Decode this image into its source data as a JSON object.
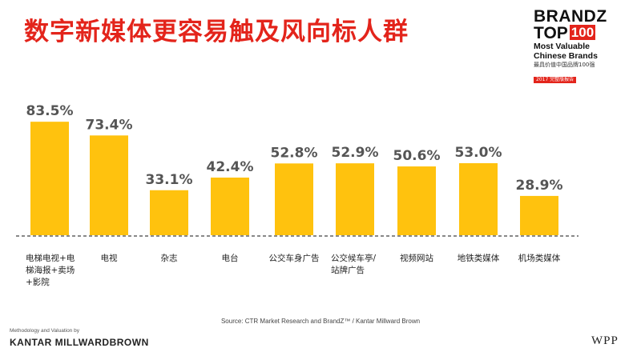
{
  "title": "数字新媒体更容易触及风向标人群",
  "logo": {
    "line1": "BRANDZ",
    "line2_prefix": "TOP",
    "line2_num": "100",
    "line3": "Most Valuable",
    "line4": "Chinese Brands",
    "line5": "最具价值中国品牌100强",
    "line6": "2017 完整版报告"
  },
  "chart_data": {
    "type": "bar",
    "categories": [
      "电梯电视+电梯海报+卖场+影院",
      "电视",
      "杂志",
      "电台",
      "公交车身广告",
      "公交候车亭/站牌广告",
      "视频网站",
      "地铁类媒体",
      "机场类媒体"
    ],
    "category_lines": [
      [
        "电梯电视+电",
        "梯海报+卖场",
        "+影院"
      ],
      [
        "电视"
      ],
      [
        "杂志"
      ],
      [
        "电台"
      ],
      [
        "公交车身广告"
      ],
      [
        "公交候车亭/",
        "站牌广告"
      ],
      [
        "视频网站"
      ],
      [
        "地铁类媒体"
      ],
      [
        "机场类媒体"
      ]
    ],
    "values": [
      83.5,
      73.4,
      33.1,
      42.4,
      52.8,
      52.9,
      50.6,
      53.0,
      28.9
    ],
    "value_labels": [
      "83.5%",
      "73.4%",
      "33.1%",
      "42.4%",
      "52.8%",
      "52.9%",
      "50.6%",
      "53.0%",
      "28.9%"
    ],
    "ylim": [
      0,
      100
    ],
    "bar_color": "#ffc20e",
    "label_color": "#555555",
    "grid": false,
    "baseline": "dashed"
  },
  "source": "Source: CTR Market Research and BrandZ™ / Kantar Millward Brown",
  "footer": {
    "methodology": "Methodology and Valuation by",
    "kantar": "KANTAR MILLWARDBROWN",
    "wpp": "WPP"
  }
}
